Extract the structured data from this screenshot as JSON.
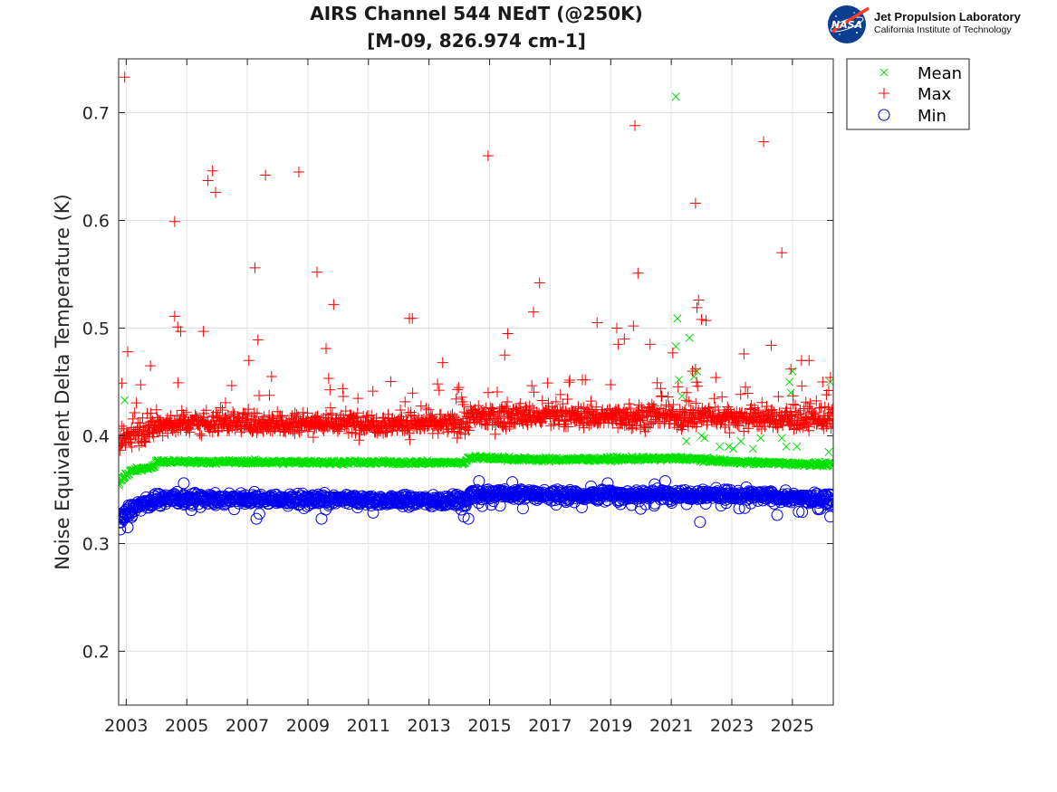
{
  "logo": {
    "org_name": "Jet Propulsion Laboratory",
    "org_subtitle": "California Institute of Technology",
    "badge_text": "NASA"
  },
  "chart_data": {
    "type": "scatter",
    "title": "AIRS Channel 544 NEdT (@250K)",
    "subtitle": "[M-09, 826.974 cm-1]",
    "xlabel": "",
    "ylabel": "Noise Equivalent Delta Temperature (K)",
    "xlim": [
      2002.75,
      2026.35
    ],
    "ylim": [
      0.15,
      0.75
    ],
    "x_ticks": [
      "2003",
      "2005",
      "2007",
      "2009",
      "2011",
      "2013",
      "2015",
      "2017",
      "2019",
      "2021",
      "2023",
      "2025"
    ],
    "y_ticks": [
      "0.2",
      "0.3",
      "0.4",
      "0.5",
      "0.6",
      "0.7"
    ],
    "grid": true,
    "legend_position": "outside-top-right",
    "colors": {
      "Mean": "#00e000",
      "Max": "#ff0000",
      "Min": "#0000ee"
    },
    "series": [
      {
        "name": "Mean",
        "marker": "x",
        "baseline": [
          [
            2002.75,
            0.355
          ],
          [
            2002.9,
            0.362
          ],
          [
            2003.2,
            0.368
          ],
          [
            2003.9,
            0.371
          ],
          [
            2004.0,
            0.376
          ],
          [
            2014.2,
            0.375
          ],
          [
            2014.3,
            0.38
          ],
          [
            2016.5,
            0.378
          ],
          [
            2017.0,
            0.378
          ],
          [
            2021.5,
            0.379
          ],
          [
            2023.0,
            0.376
          ],
          [
            2026.35,
            0.373
          ]
        ],
        "outliers": [
          [
            2002.95,
            0.433
          ],
          [
            2021.15,
            0.715
          ],
          [
            2021.2,
            0.509
          ],
          [
            2021.15,
            0.483
          ],
          [
            2021.25,
            0.452
          ],
          [
            2021.35,
            0.437
          ],
          [
            2021.6,
            0.491
          ],
          [
            2021.75,
            0.455
          ],
          [
            2021.85,
            0.46
          ],
          [
            2021.5,
            0.395
          ],
          [
            2022.0,
            0.4
          ],
          [
            2022.1,
            0.398
          ],
          [
            2022.6,
            0.39
          ],
          [
            2022.9,
            0.39
          ],
          [
            2023.05,
            0.388
          ],
          [
            2023.3,
            0.395
          ],
          [
            2023.7,
            0.388
          ],
          [
            2023.95,
            0.398
          ],
          [
            2024.9,
            0.45
          ],
          [
            2025.0,
            0.46
          ],
          [
            2024.8,
            0.39
          ],
          [
            2025.15,
            0.39
          ],
          [
            2024.65,
            0.398
          ],
          [
            2024.95,
            0.44
          ],
          [
            2026.2,
            0.385
          ],
          [
            2026.25,
            0.45
          ]
        ]
      },
      {
        "name": "Max",
        "marker": "+",
        "baseline": [
          [
            2002.75,
            0.39
          ],
          [
            2003.0,
            0.398
          ],
          [
            2003.5,
            0.405
          ],
          [
            2004.2,
            0.41
          ],
          [
            2005.0,
            0.413
          ],
          [
            2010.0,
            0.412
          ],
          [
            2014.2,
            0.411
          ],
          [
            2014.4,
            0.418
          ],
          [
            2018.0,
            0.418
          ],
          [
            2022.0,
            0.418
          ],
          [
            2026.35,
            0.415
          ]
        ],
        "outliers": [
          [
            2002.95,
            0.733
          ],
          [
            2002.85,
            0.449
          ],
          [
            2003.05,
            0.478
          ],
          [
            2003.8,
            0.465
          ],
          [
            2004.6,
            0.599
          ],
          [
            2004.6,
            0.511
          ],
          [
            2004.7,
            0.501
          ],
          [
            2004.8,
            0.497
          ],
          [
            2005.55,
            0.497
          ],
          [
            2005.7,
            0.637
          ],
          [
            2005.85,
            0.646
          ],
          [
            2005.95,
            0.626
          ],
          [
            2007.25,
            0.556
          ],
          [
            2007.35,
            0.489
          ],
          [
            2007.6,
            0.642
          ],
          [
            2007.05,
            0.47
          ],
          [
            2007.8,
            0.455
          ],
          [
            2008.7,
            0.645
          ],
          [
            2009.3,
            0.552
          ],
          [
            2009.6,
            0.481
          ],
          [
            2009.85,
            0.522
          ],
          [
            2012.45,
            0.509
          ],
          [
            2012.35,
            0.509
          ],
          [
            2013.45,
            0.468
          ],
          [
            2014.95,
            0.66
          ],
          [
            2015.6,
            0.495
          ],
          [
            2016.45,
            0.515
          ],
          [
            2016.65,
            0.542
          ],
          [
            2015.5,
            0.475
          ],
          [
            2018.55,
            0.505
          ],
          [
            2019.2,
            0.5
          ],
          [
            2019.25,
            0.485
          ],
          [
            2019.45,
            0.49
          ],
          [
            2019.75,
            0.502
          ],
          [
            2019.8,
            0.688
          ],
          [
            2019.9,
            0.551
          ],
          [
            2020.3,
            0.485
          ],
          [
            2021.05,
            0.477
          ],
          [
            2021.8,
            0.616
          ],
          [
            2021.85,
            0.519
          ],
          [
            2021.9,
            0.526
          ],
          [
            2022.0,
            0.508
          ],
          [
            2022.15,
            0.507
          ],
          [
            2021.7,
            0.46
          ],
          [
            2021.8,
            0.462
          ],
          [
            2023.4,
            0.476
          ],
          [
            2024.05,
            0.673
          ],
          [
            2024.3,
            0.484
          ],
          [
            2024.65,
            0.57
          ],
          [
            2024.95,
            0.462
          ],
          [
            2025.3,
            0.47
          ],
          [
            2025.55,
            0.47
          ],
          [
            2026.0,
            0.45
          ],
          [
            2026.2,
            0.442
          ]
        ]
      },
      {
        "name": "Min",
        "marker": "o",
        "baseline": [
          [
            2002.75,
            0.322
          ],
          [
            2003.2,
            0.333
          ],
          [
            2003.9,
            0.34
          ],
          [
            2004.2,
            0.342
          ],
          [
            2008.0,
            0.341
          ],
          [
            2012.0,
            0.34
          ],
          [
            2014.2,
            0.34
          ],
          [
            2014.4,
            0.346
          ],
          [
            2018.0,
            0.345
          ],
          [
            2022.0,
            0.346
          ],
          [
            2026.35,
            0.341
          ]
        ],
        "outliers": [
          [
            2002.8,
            0.313
          ],
          [
            2003.05,
            0.315
          ],
          [
            2004.9,
            0.356
          ],
          [
            2007.3,
            0.323
          ],
          [
            2009.45,
            0.323
          ],
          [
            2014.3,
            0.323
          ],
          [
            2014.15,
            0.325
          ],
          [
            2018.9,
            0.356
          ],
          [
            2020.8,
            0.358
          ],
          [
            2021.95,
            0.32
          ],
          [
            2026.25,
            0.325
          ],
          [
            2014.65,
            0.358
          ],
          [
            2015.75,
            0.357
          ],
          [
            2018.35,
            0.353
          ],
          [
            2020.45,
            0.355
          ]
        ]
      }
    ]
  }
}
